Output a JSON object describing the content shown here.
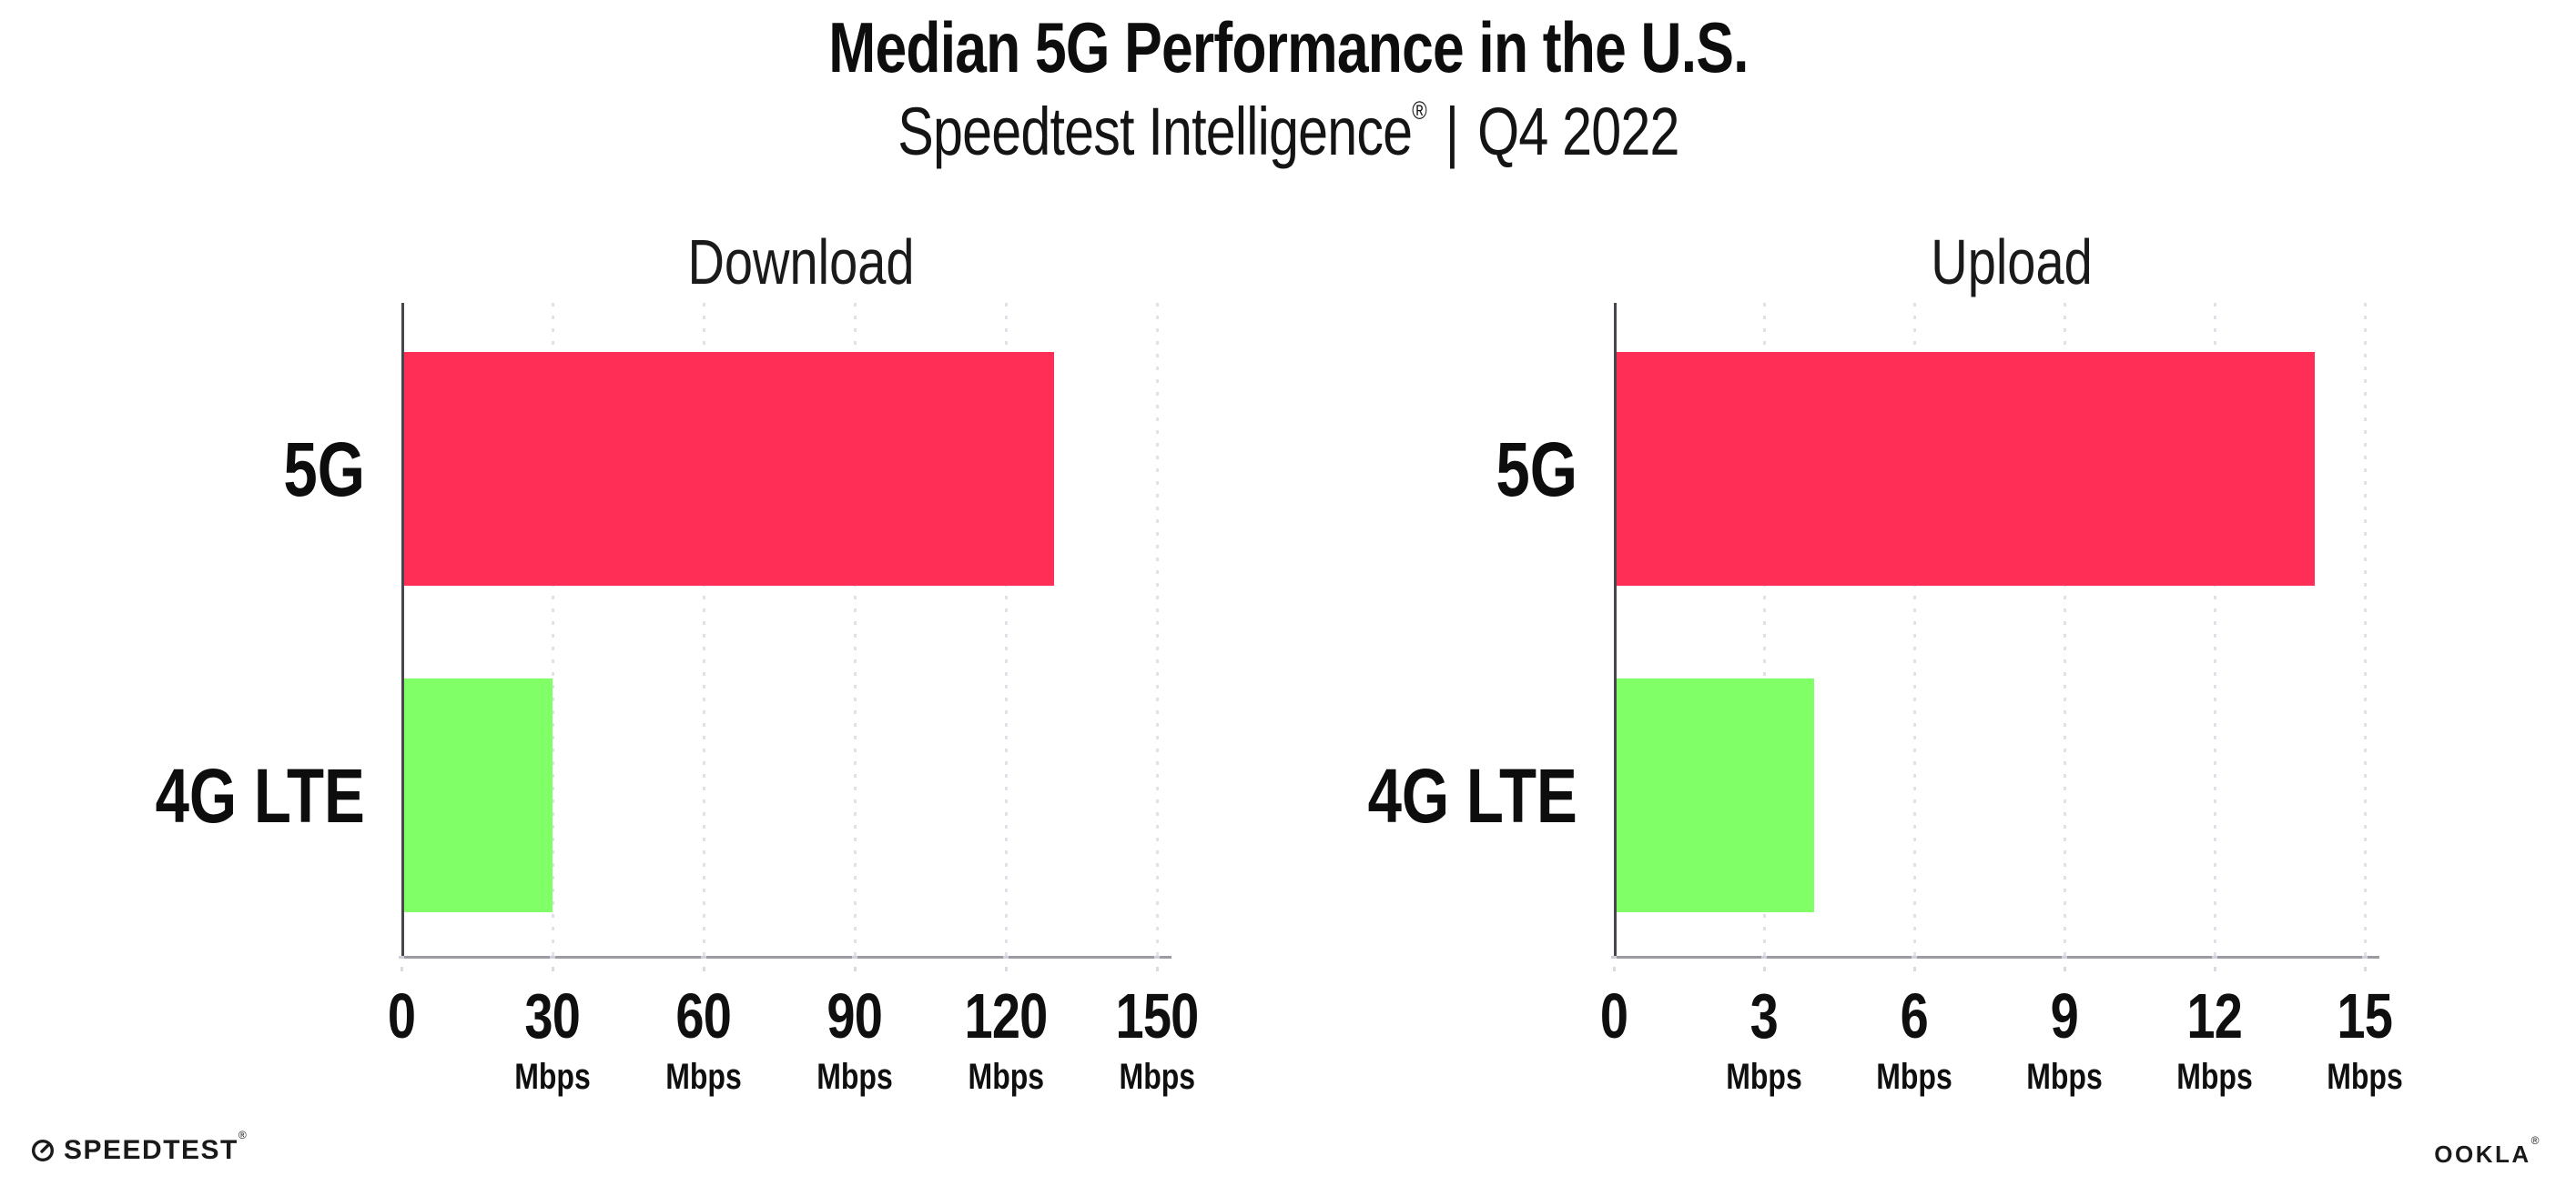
{
  "header": {
    "title": "Median 5G Performance in the U.S.",
    "subtitle_brand": "Speedtest Intelligence",
    "subtitle_reg": "®",
    "subtitle_divider": "|",
    "subtitle_period": "Q4 2022"
  },
  "chart_data": [
    {
      "type": "bar",
      "orientation": "horizontal",
      "title": "Download",
      "categories": [
        "5G",
        "4G LTE"
      ],
      "values": [
        129.5,
        30
      ],
      "unit": "Mbps",
      "xlim": [
        0,
        150
      ],
      "xticks": [
        0,
        30,
        60,
        90,
        120,
        150
      ],
      "bar_colors": [
        "#ff2e56",
        "#80ff66"
      ],
      "grid": "dotted-vertical",
      "legend": "none"
    },
    {
      "type": "bar",
      "orientation": "horizontal",
      "title": "Upload",
      "categories": [
        "5G",
        "4G LTE"
      ],
      "values": [
        14,
        4
      ],
      "unit": "Mbps",
      "xlim": [
        0,
        15
      ],
      "xticks": [
        0,
        3,
        6,
        9,
        12,
        15
      ],
      "bar_colors": [
        "#ff2e56",
        "#80ff66"
      ],
      "grid": "dotted-vertical",
      "legend": "none"
    }
  ],
  "footer": {
    "speedtest_label": "SPEEDTEST",
    "speedtest_reg": "®",
    "ookla_label": "OOKLA",
    "ookla_reg": "®"
  },
  "colors": {
    "bar_5g": "#ff2e56",
    "bar_4g_lte": "#80ff66",
    "axis_spine": "#46464c",
    "axis_line": "#9b9ba1",
    "gridline": "#e1e1ea",
    "text": "#0d0d0d"
  }
}
